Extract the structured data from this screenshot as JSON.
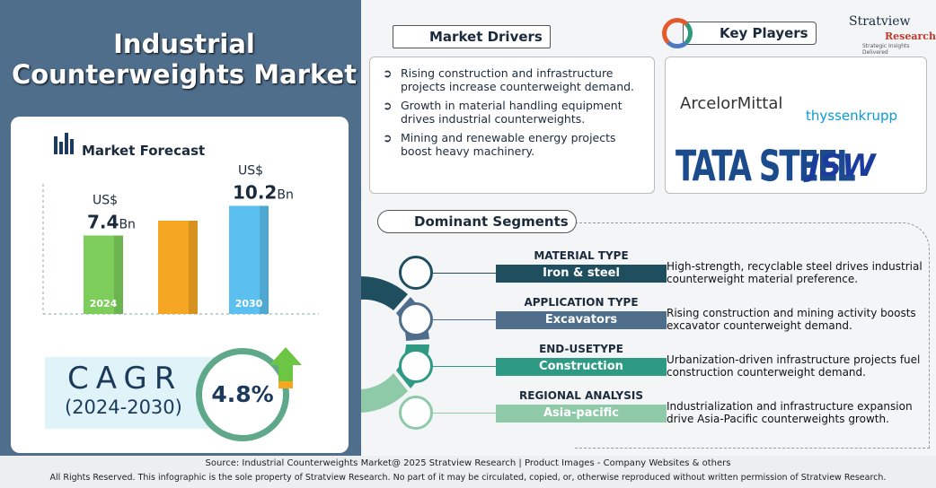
{
  "header": {
    "title": "Industrial Counterweights Market"
  },
  "brand": {
    "name": "Stratview",
    "sub": "Research",
    "tagline": "Strategic Insights Delivered"
  },
  "forecast": {
    "title": "Market Forecast",
    "currency": "US$",
    "unit": "Bn",
    "categories": [
      "2024",
      null,
      "2030"
    ],
    "values": [
      7.4,
      8.8,
      10.2
    ],
    "colors": [
      "#7ccd5a",
      "#f5a623",
      "#5bc0f0"
    ],
    "ylim": [
      0,
      11
    ]
  },
  "cagr": {
    "label": "CAGR",
    "period": "(2024-2030)",
    "value": "4.8%"
  },
  "drivers": {
    "title": "Market Drivers",
    "items": [
      "Rising construction and infrastructure projects increase counterweight demand.",
      "Growth in material handling equipment drives industrial counterweights.",
      "Mining and renewable energy projects boost heavy machinery."
    ]
  },
  "key_players": {
    "title": "Key Players",
    "items": [
      "ArcelorMittal",
      "thyssenkrupp",
      "TATA STEEL",
      "JSW"
    ]
  },
  "segments": {
    "title": "Dominant Segments",
    "items": [
      {
        "type": "MATERIAL TYPE",
        "value": "Iron & steel",
        "text": "High-strength, recyclable steel drives industrial counterweight material preference."
      },
      {
        "type": "APPLICATION TYPE",
        "value": "Excavators",
        "text": "Rising construction and mining activity boosts excavator counterweight demand."
      },
      {
        "type": "END-USETYPE",
        "value": "Construction",
        "text": "Urbanization-driven infrastructure projects fuel construction counterweight demand."
      },
      {
        "type": "REGIONAL ANALYSIS",
        "value": "Asia-pacific",
        "text": "Industrialization and infrastructure expansion drive Asia-Pacific counterweights growth."
      }
    ]
  },
  "footer": {
    "source": "Source:  Industrial Counterweights Market@ 2025 Stratview Research | Product Images  - Company Websites & others",
    "rights": "All Rights Reserved. This infographic is the sole property of Stratview Research. No part of it may be circulated, copied, or, otherwise reproduced without written permission of Stratview Research."
  }
}
